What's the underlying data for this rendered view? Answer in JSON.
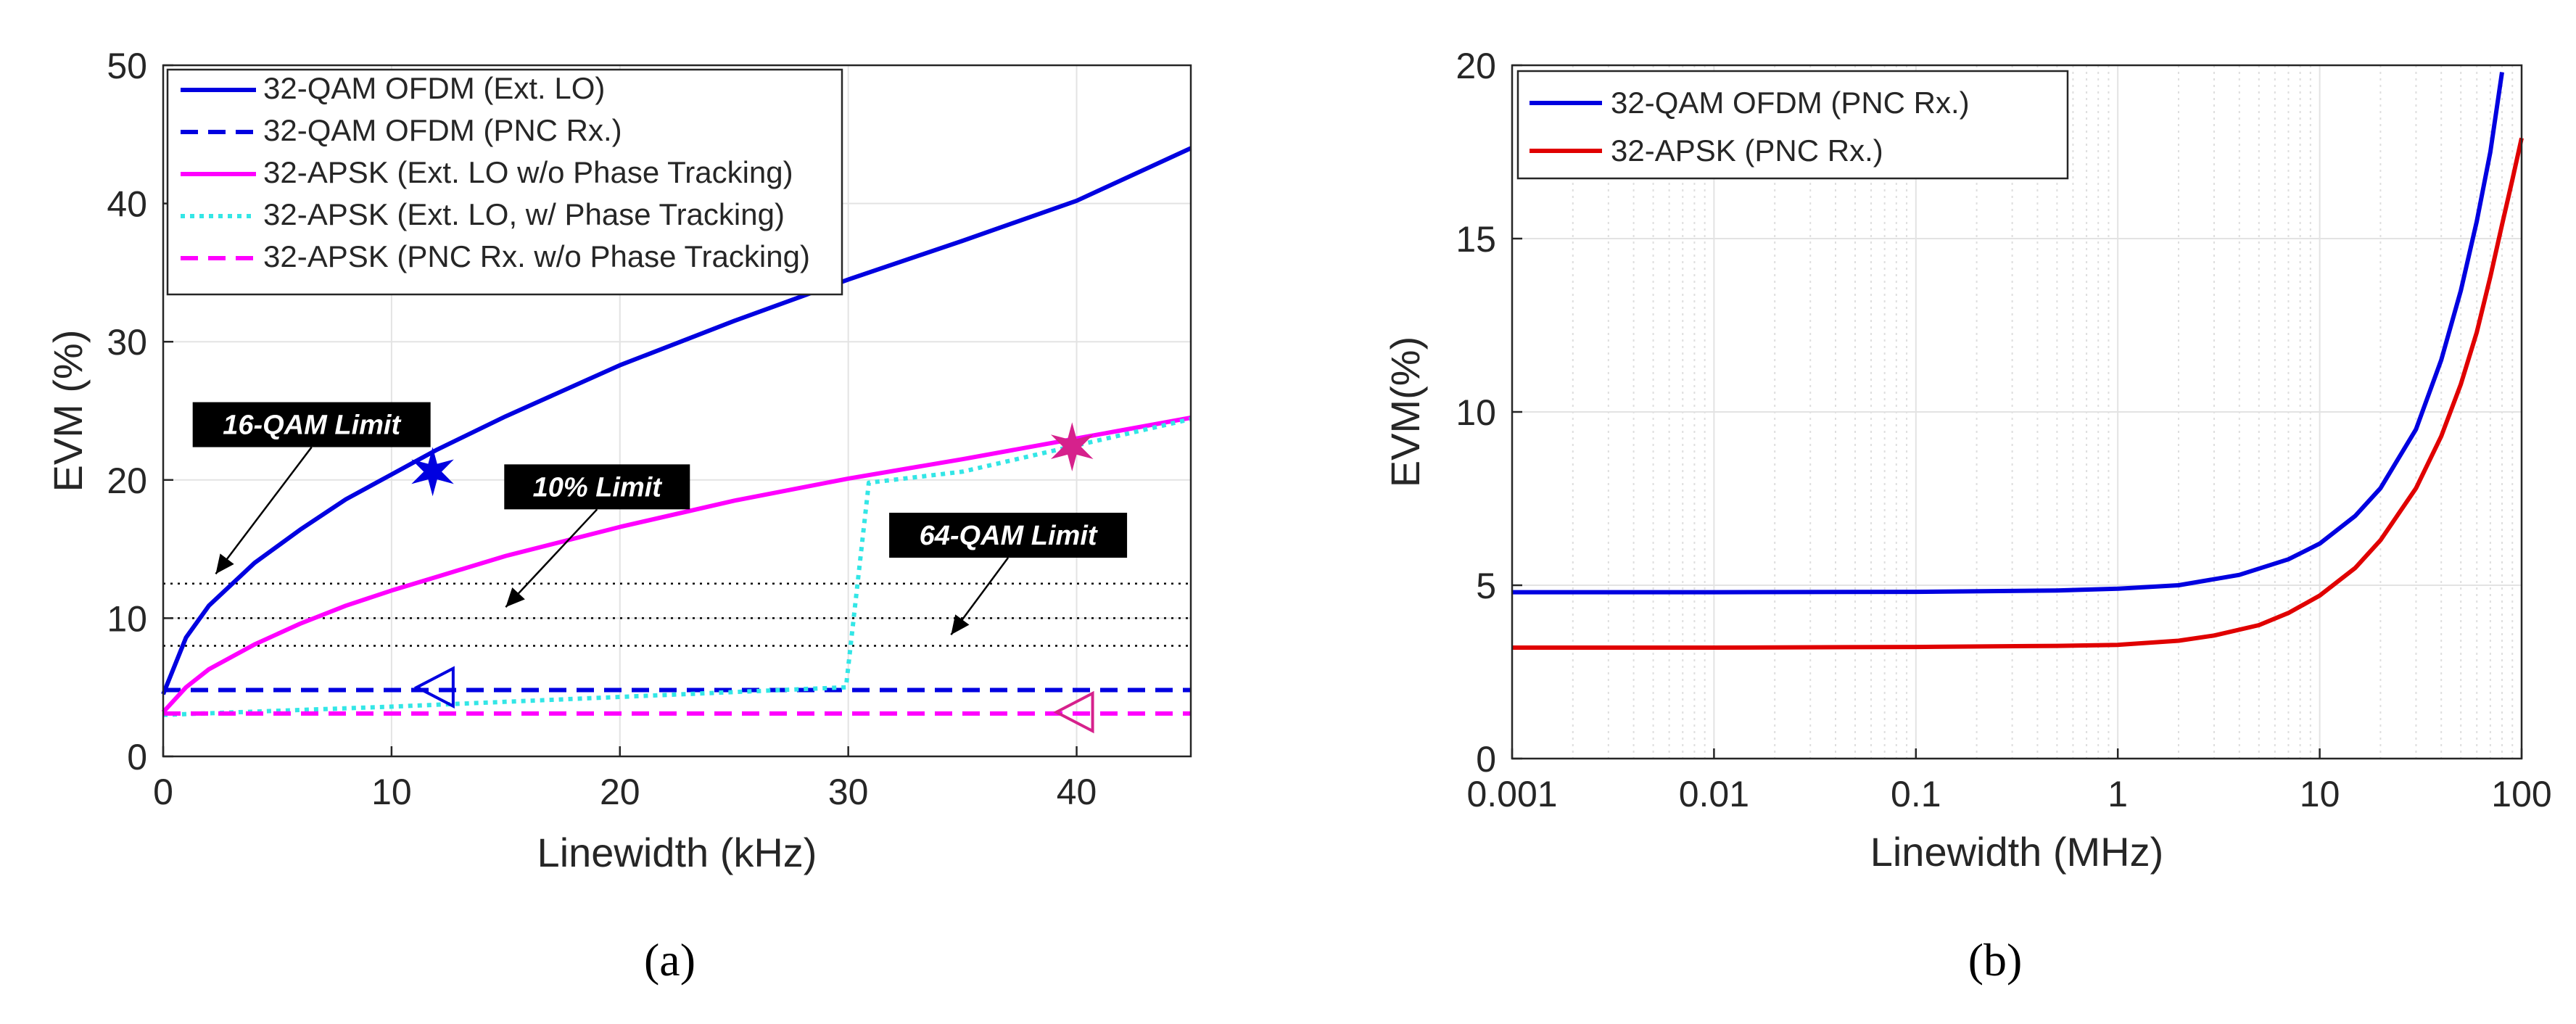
{
  "chart_data": [
    {
      "type": "line",
      "xlabel": "Linewidth (kHz)",
      "ylabel": "EVM (%)",
      "xlim": [
        0,
        45
      ],
      "ylim": [
        0,
        50
      ],
      "xticks": [
        0,
        10,
        20,
        30,
        40
      ],
      "yticks": [
        0,
        10,
        20,
        30,
        40,
        50
      ],
      "grid": true,
      "legend_position": "top-left",
      "caption": "(a)",
      "series": [
        {
          "name": "32-QAM OFDM (Ext. LO)",
          "color": "#0000e0",
          "style": "solid",
          "x": [
            0,
            1,
            2,
            4,
            6,
            8,
            10,
            12,
            15,
            20,
            25,
            30,
            35,
            40,
            45
          ],
          "y": [
            4.5,
            8.6,
            10.9,
            14.0,
            16.4,
            18.6,
            20.4,
            22.2,
            24.6,
            28.3,
            31.5,
            34.5,
            37.3,
            40.2,
            44.0
          ]
        },
        {
          "name": "32-QAM OFDM (PNC Rx.)",
          "color": "#0000e0",
          "style": "dashed",
          "x": [
            0,
            45
          ],
          "y": [
            4.8,
            4.8
          ]
        },
        {
          "name": "32-APSK (Ext. LO w/o Phase Tracking)",
          "color": "#ff00ff",
          "style": "solid",
          "x": [
            0,
            1,
            2,
            4,
            6,
            8,
            10,
            12,
            15,
            20,
            25,
            30,
            35,
            40,
            45
          ],
          "y": [
            3.2,
            5.0,
            6.3,
            8.1,
            9.6,
            10.9,
            12.0,
            13.0,
            14.5,
            16.6,
            18.5,
            20.1,
            21.5,
            23.0,
            24.5
          ]
        },
        {
          "name": "32-APSK (Ext. LO, w/ Phase Tracking)",
          "color": "#33e6e6",
          "style": "dotted",
          "x": [
            0,
            10,
            20,
            29.9,
            30.9,
            35,
            40,
            45
          ],
          "y": [
            3.0,
            3.6,
            4.3,
            5.0,
            19.8,
            20.6,
            22.5,
            24.4
          ]
        },
        {
          "name": "32-APSK (PNC Rx. w/o Phase Tracking)",
          "color": "#ff00ff",
          "style": "dashed",
          "x": [
            0,
            45
          ],
          "y": [
            3.1,
            3.1
          ]
        }
      ],
      "reference_lines": [
        {
          "label": "16-QAM Limit",
          "y": 12.5,
          "label_x": 6.5,
          "label_y": 24.0,
          "arrow_to_x": 2.3,
          "arrow_to_y": 13.2
        },
        {
          "label": "10% Limit",
          "y": 10.0,
          "label_x": 19.0,
          "label_y": 19.5,
          "arrow_to_x": 15.0,
          "arrow_to_y": 10.8
        },
        {
          "label": "64-QAM Limit",
          "y": 8.0,
          "label_x": 37.0,
          "label_y": 16.0,
          "arrow_to_x": 34.5,
          "arrow_to_y": 8.8
        }
      ],
      "markers": [
        {
          "shape": "star",
          "x": 11.8,
          "y": 20.6,
          "color": "#0000e0"
        },
        {
          "shape": "star",
          "x": 39.8,
          "y": 22.4,
          "color": "#d6218c"
        },
        {
          "shape": "triangle-left",
          "x": 12.0,
          "y": 5.0,
          "color": "#0000e0"
        },
        {
          "shape": "triangle-left",
          "x": 40.0,
          "y": 3.2,
          "color": "#d6218c"
        }
      ]
    },
    {
      "type": "line",
      "xscale": "log",
      "xlabel": "Linewidth (MHz)",
      "ylabel": "EVM(%)",
      "xlim": [
        0.001,
        100
      ],
      "ylim": [
        0,
        20
      ],
      "xticks": [
        0.001,
        0.01,
        0.1,
        1,
        10,
        100
      ],
      "xticklabels": [
        "0.001",
        "0.01",
        "0.1",
        "1",
        "10",
        "100"
      ],
      "yticks": [
        0,
        5,
        10,
        15,
        20
      ],
      "grid": true,
      "legend_position": "top-left",
      "caption": "(b)",
      "series": [
        {
          "name": "32-QAM OFDM (PNC Rx.)",
          "color": "#0000e0",
          "x": [
            0.001,
            0.01,
            0.1,
            0.5,
            1,
            2,
            4,
            7,
            10,
            15,
            20,
            30,
            40,
            50,
            60,
            70,
            80
          ],
          "y": [
            4.8,
            4.8,
            4.81,
            4.85,
            4.9,
            5.0,
            5.3,
            5.75,
            6.2,
            7.0,
            7.8,
            9.5,
            11.5,
            13.5,
            15.5,
            17.5,
            19.8
          ]
        },
        {
          "name": "32-APSK (PNC Rx.)",
          "color": "#e00000",
          "x": [
            0.001,
            0.01,
            0.1,
            0.5,
            1,
            2,
            3,
            5,
            7,
            10,
            15,
            20,
            30,
            40,
            50,
            60,
            70,
            80,
            90,
            100
          ],
          "y": [
            3.2,
            3.2,
            3.22,
            3.25,
            3.28,
            3.4,
            3.55,
            3.85,
            4.2,
            4.7,
            5.5,
            6.3,
            7.8,
            9.3,
            10.8,
            12.3,
            13.9,
            15.4,
            16.7,
            17.9
          ]
        }
      ]
    }
  ]
}
